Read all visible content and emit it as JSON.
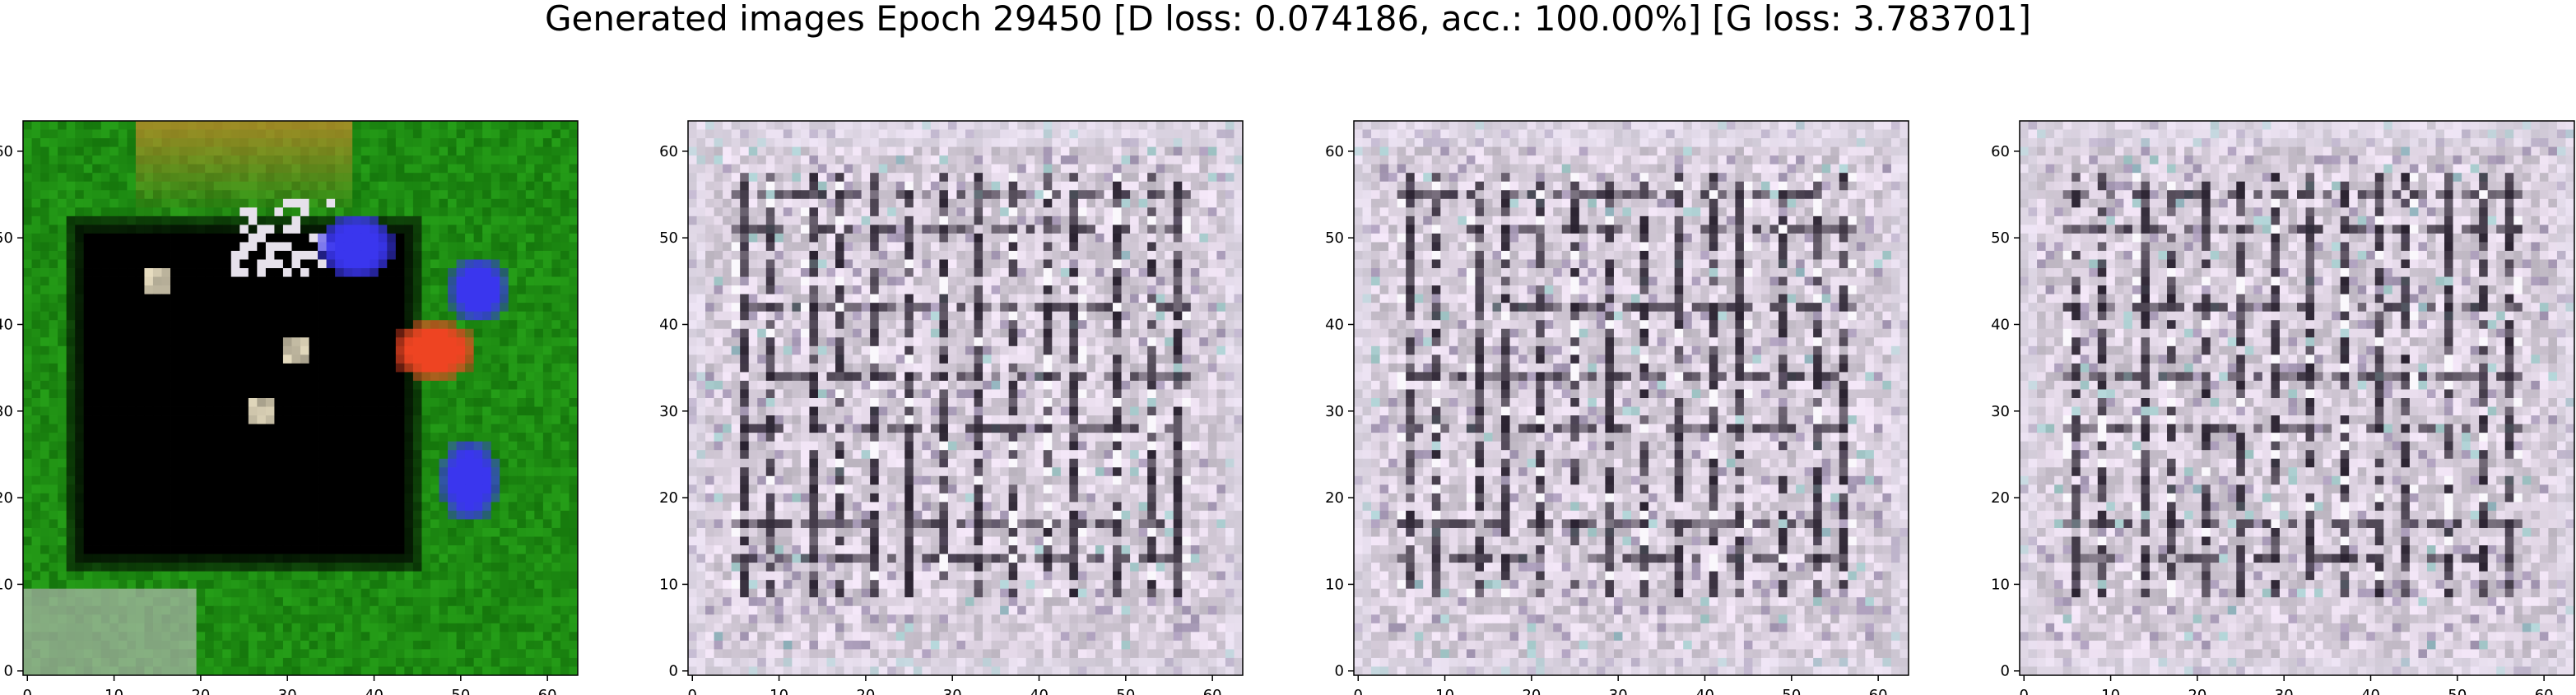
{
  "title": "Generated images Epoch 29450 [D loss: 0.074186, acc.: 100.00%] [G loss: 3.783701]",
  "chart_data": [
    {
      "type": "image",
      "content": "generated sample 1: green background, black square, orange top-left patch, blue blobs at right",
      "x_ticks": [
        0,
        10,
        20,
        30,
        40,
        50,
        60
      ],
      "y_ticks": [
        0,
        10,
        20,
        30,
        40,
        50,
        60
      ],
      "xlim": [
        -0.5,
        63.5
      ],
      "ylim": [
        63.5,
        -0.5
      ]
    },
    {
      "type": "image",
      "content": "generated sample 2: pale lavender grid-like texture with dark vertical/horizontal lines",
      "x_ticks": [
        0,
        10,
        20,
        30,
        40,
        50,
        60
      ],
      "y_ticks": [
        0,
        10,
        20,
        30,
        40,
        50,
        60
      ],
      "xlim": [
        -0.5,
        63.5
      ],
      "ylim": [
        63.5,
        -0.5
      ]
    },
    {
      "type": "image",
      "content": "generated sample 3: pale lavender grid-like texture with dark vertical/horizontal lines",
      "x_ticks": [
        0,
        10,
        20,
        30,
        40,
        50,
        60
      ],
      "y_ticks": [
        0,
        10,
        20,
        30,
        40,
        50,
        60
      ],
      "xlim": [
        -0.5,
        63.5
      ],
      "ylim": [
        63.5,
        -0.5
      ]
    },
    {
      "type": "image",
      "content": "generated sample 4: pale lavender grid-like texture with dark vertical/horizontal lines",
      "x_ticks": [
        0,
        10,
        20,
        30,
        40,
        50,
        60
      ],
      "y_ticks": [
        0,
        10,
        20,
        30,
        40,
        50,
        60
      ],
      "xlim": [
        -0.5,
        63.5
      ],
      "ylim": [
        63.5,
        -0.5
      ]
    }
  ],
  "colors": {
    "green_bg": "#1d8a12",
    "black_square": "#000000",
    "orange_patch": "#c68a2a",
    "blue_blob": "#3a36ee",
    "red_blob": "#ee4422",
    "grid_bg": "#d8cedc",
    "grid_line": "#2a2230",
    "grid_accent": "#8a7aa0"
  }
}
